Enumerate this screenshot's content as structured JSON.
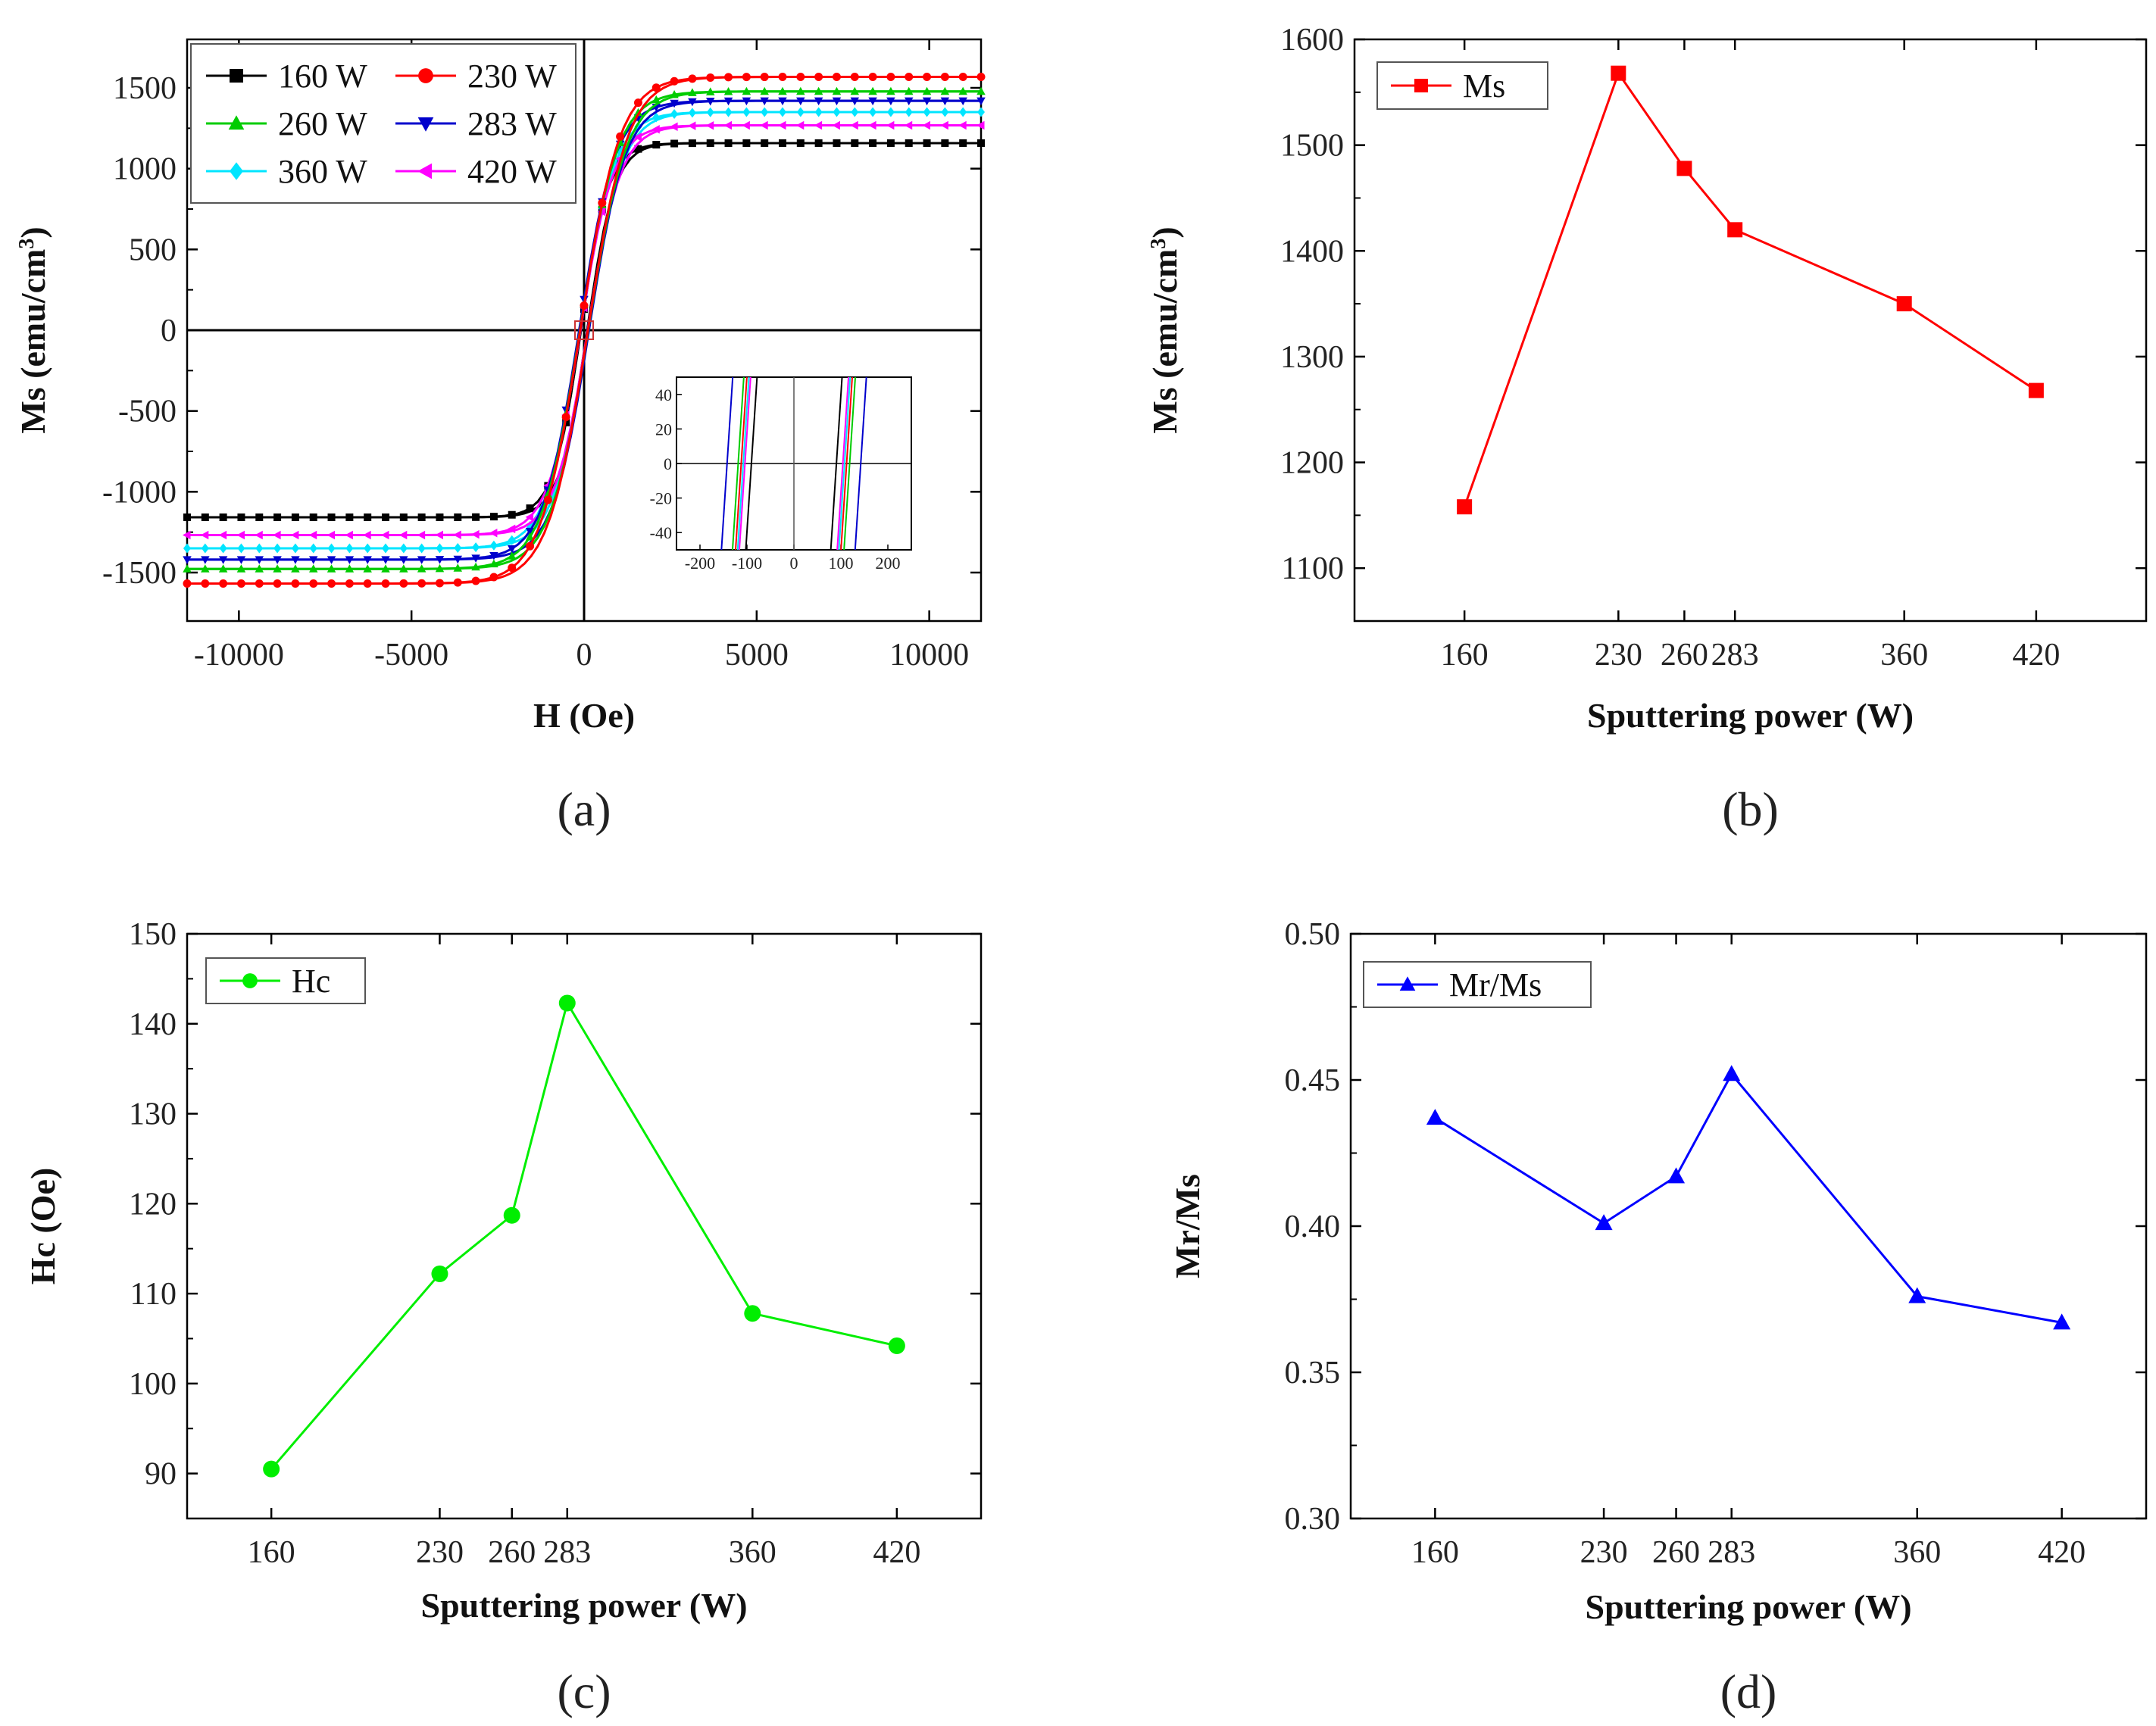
{
  "chart_data": [
    {
      "panel": "(a)",
      "type": "line",
      "xlabel": "H (Oe)",
      "ylabel": "Ms (emu/cm",
      "ylabel_sup": "3",
      "ylabel_close": ")",
      "xlim": [
        -11500,
        11500
      ],
      "ylim": [
        -1800,
        1800
      ],
      "xticks": [
        -10000,
        -5000,
        0,
        5000,
        10000
      ],
      "yticks": [
        -1500,
        -1000,
        -500,
        0,
        500,
        1000,
        1500
      ],
      "legend_position": "top-left",
      "series": [
        {
          "name": "160 W",
          "color": "#000000",
          "marker": "square",
          "ms": 1158,
          "hc": 90.5,
          "sat_field": 800
        },
        {
          "name": "230 W",
          "color": "#ff0000",
          "marker": "circle",
          "ms": 1568,
          "hc": 112.2,
          "sat_field": 1150
        },
        {
          "name": "260 W",
          "color": "#00cc00",
          "marker": "triangle-up",
          "ms": 1478,
          "hc": 118.7,
          "sat_field": 1100
        },
        {
          "name": "283 W",
          "color": "#0000cc",
          "marker": "triangle-down",
          "ms": 1420,
          "hc": 142.3,
          "sat_field": 1050
        },
        {
          "name": "360 W",
          "color": "#00e5ff",
          "marker": "diamond",
          "ms": 1350,
          "hc": 107.8,
          "sat_field": 1000
        },
        {
          "name": "420 W",
          "color": "#ff00ff",
          "marker": "triangle-left",
          "ms": 1268,
          "hc": 104.2,
          "sat_field": 950
        }
      ],
      "inset": {
        "xlim": [
          -250,
          250
        ],
        "ylim": [
          -50,
          50
        ],
        "xticks": [
          -200,
          -100,
          0,
          100,
          200
        ],
        "yticks": [
          -40,
          -20,
          0,
          20,
          40
        ]
      }
    },
    {
      "panel": "(b)",
      "type": "line",
      "xlabel": "Sputtering power (W)",
      "ylabel": "Ms (emu/cm",
      "ylabel_sup": "3",
      "ylabel_close": ")",
      "xlim": [
        110,
        470
      ],
      "ylim": [
        1050,
        1600
      ],
      "xticks": [
        160,
        230,
        260,
        283,
        360,
        420
      ],
      "yticks": [
        1100,
        1200,
        1300,
        1400,
        1500,
        1600
      ],
      "legend_position": "top-left",
      "series": [
        {
          "name": "Ms",
          "color": "#ff0000",
          "marker": "square",
          "x": [
            160,
            230,
            260,
            283,
            360,
            420
          ],
          "y": [
            1158,
            1568,
            1478,
            1420,
            1350,
            1268
          ]
        }
      ]
    },
    {
      "panel": "(c)",
      "type": "line",
      "xlabel": "Sputtering power (W)",
      "ylabel": "Hc (Oe)",
      "xlim": [
        125,
        455
      ],
      "ylim": [
        85,
        150
      ],
      "xticks": [
        160,
        230,
        260,
        283,
        360,
        420
      ],
      "yticks": [
        90,
        100,
        110,
        120,
        130,
        140,
        150
      ],
      "legend_position": "top-left",
      "series": [
        {
          "name": "Hc",
          "color": "#00ee00",
          "marker": "circle",
          "x": [
            160,
            230,
            260,
            283,
            360,
            420
          ],
          "y": [
            90.5,
            112.2,
            118.7,
            142.3,
            107.8,
            104.2
          ]
        }
      ]
    },
    {
      "panel": "(d)",
      "type": "line",
      "xlabel": "Sputtering power (W)",
      "ylabel": "Mr/Ms",
      "xlim": [
        125,
        455
      ],
      "ylim": [
        0.3,
        0.5
      ],
      "xticks": [
        160,
        230,
        260,
        283,
        360,
        420
      ],
      "yticks": [
        "0.30",
        "0.35",
        "0.40",
        "0.45",
        "0.50"
      ],
      "legend_position": "top-left",
      "series": [
        {
          "name": "Mr/Ms",
          "color": "#0000ff",
          "marker": "triangle-up",
          "x": [
            160,
            230,
            260,
            283,
            360,
            420
          ],
          "y": [
            0.437,
            0.401,
            0.417,
            0.452,
            0.376,
            0.367
          ]
        }
      ]
    }
  ]
}
